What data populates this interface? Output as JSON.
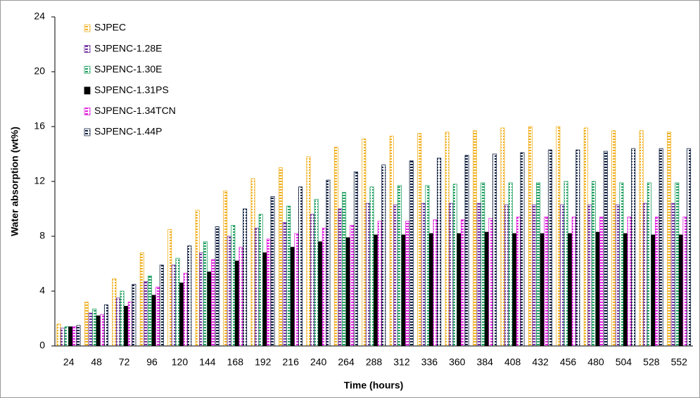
{
  "chart_data": {
    "type": "bar",
    "x_label": "Time (hours)",
    "y_label": "Water absorption (wt%)",
    "categories": [
      24,
      48,
      72,
      96,
      120,
      144,
      168,
      192,
      216,
      240,
      264,
      288,
      312,
      336,
      360,
      384,
      408,
      432,
      456,
      480,
      504,
      528,
      552
    ],
    "series": [
      {
        "name": "SJPEC",
        "color": "#f0b020",
        "values": [
          1.6,
          3.2,
          4.9,
          6.8,
          8.5,
          9.9,
          11.3,
          12.2,
          13.0,
          13.8,
          14.5,
          15.1,
          15.3,
          15.5,
          15.6,
          15.7,
          15.9,
          16.0,
          16.0,
          15.9,
          15.7,
          15.7,
          15.6
        ]
      },
      {
        "name": "SJPENC-1.28E",
        "color": "#7030a0",
        "values": [
          1.3,
          2.4,
          3.5,
          4.7,
          5.9,
          6.8,
          8.0,
          8.6,
          9.0,
          9.6,
          10.0,
          10.4,
          10.3,
          10.4,
          10.4,
          10.4,
          10.3,
          10.3,
          10.3,
          10.3,
          10.3,
          10.4,
          10.4
        ]
      },
      {
        "name": "SJPENC-1.30E",
        "color": "#20a060",
        "values": [
          1.4,
          2.7,
          4.0,
          5.1,
          6.4,
          7.6,
          8.8,
          9.6,
          10.2,
          10.7,
          11.2,
          11.6,
          11.7,
          11.7,
          11.8,
          11.9,
          11.9,
          11.9,
          12.0,
          12.0,
          11.9,
          11.9,
          11.9
        ]
      },
      {
        "name": "SJPENC-1.31PS",
        "color": "#000000",
        "values": [
          1.4,
          2.2,
          2.9,
          3.7,
          4.6,
          5.4,
          6.2,
          6.8,
          7.2,
          7.6,
          7.9,
          8.1,
          8.1,
          8.2,
          8.2,
          8.3,
          8.2,
          8.2,
          8.2,
          8.3,
          8.2,
          8.1,
          8.1
        ]
      },
      {
        "name": "SJPENC-1.34TCN",
        "color": "#e020e0",
        "values": [
          1.4,
          2.3,
          3.2,
          4.3,
          5.3,
          6.3,
          7.2,
          7.8,
          8.2,
          8.6,
          8.8,
          9.1,
          9.1,
          9.2,
          9.2,
          9.3,
          9.4,
          9.4,
          9.4,
          9.4,
          9.4,
          9.4,
          9.4
        ]
      },
      {
        "name": "SJPENC-1.44P",
        "color": "#102040",
        "values": [
          1.5,
          3.0,
          4.5,
          5.9,
          7.3,
          8.7,
          10.0,
          10.9,
          11.6,
          12.1,
          12.7,
          13.2,
          13.5,
          13.7,
          13.9,
          14.0,
          14.1,
          14.3,
          14.3,
          14.2,
          14.4,
          14.4,
          14.4
        ]
      }
    ],
    "ylim": [
      0,
      24
    ],
    "yticks": [
      0,
      4,
      8,
      12,
      16,
      20,
      24
    ],
    "grid": false,
    "legend": "upper left"
  }
}
